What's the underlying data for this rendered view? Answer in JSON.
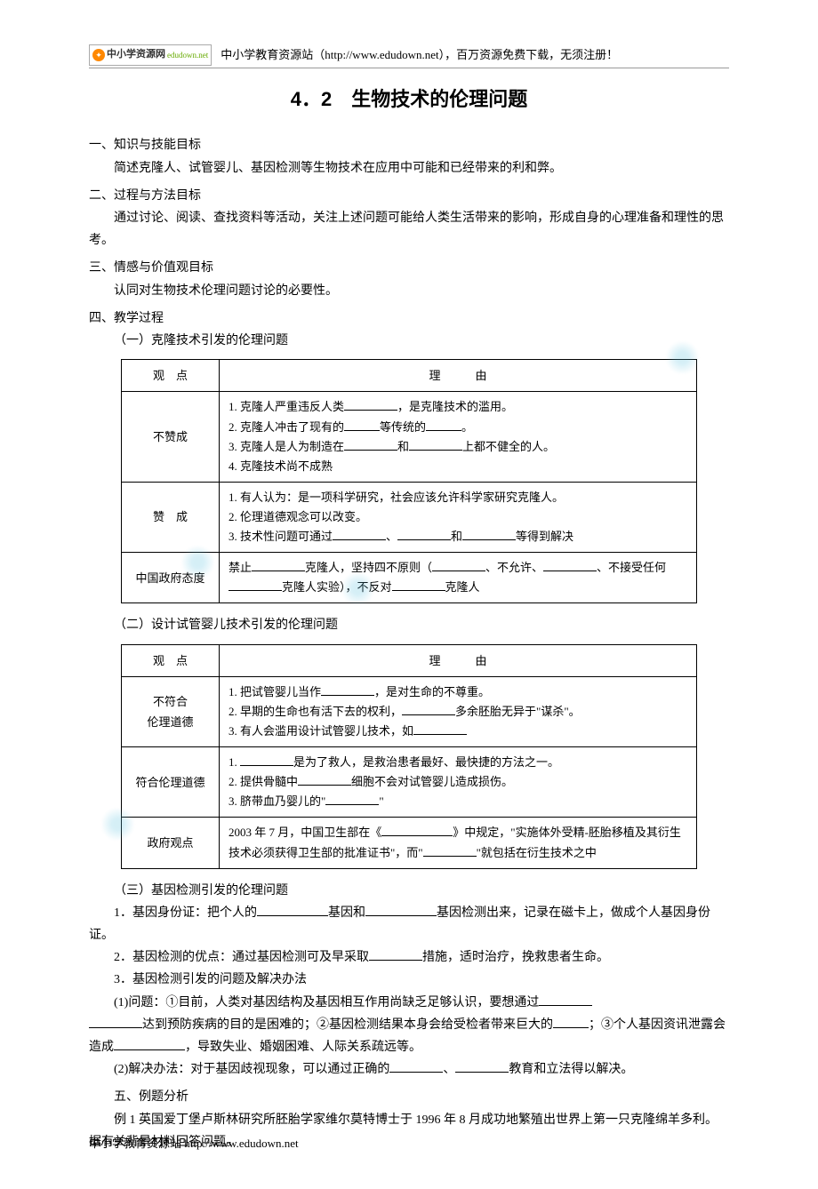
{
  "header": {
    "logo_main": "中小学资源网",
    "logo_sub": "edudown.net",
    "site_text": "中小学教育资源站（http://www.edudown.net），百万资源免费下载，无须注册！"
  },
  "title": "4．2　生物技术的伦理问题",
  "sec1": {
    "label": "一、知识与技能目标",
    "body": "简述克隆人、试管婴儿、基因检测等生物技术在应用中可能和已经带来的利和弊。"
  },
  "sec2": {
    "label": "二、过程与方法目标",
    "body": "通过讨论、阅读、查找资料等活动，关注上述问题可能给人类生活带来的影响，形成自身的心理准备和理性的思考。"
  },
  "sec3": {
    "label": "三、情感与价值观目标",
    "body": "认同对生物技术伦理问题讨论的必要性。"
  },
  "sec4_label": "四、教学过程",
  "sub1": {
    "label": "（一）克隆技术引发的伦理问题",
    "h1": "观　点",
    "h2": "理　　　由",
    "r1_label": "不赞成",
    "r1_l1a": "1. 克隆人严重违反人类",
    "r1_l1b": "，是克隆技术的滥用。",
    "r1_l2a": "2. 克隆人冲击了现有的",
    "r1_l2b": "等传统的",
    "r1_l2c": "。",
    "r1_l3a": "3. 克隆人是人为制造在",
    "r1_l3b": "和",
    "r1_l3c": "上都不健全的人。",
    "r1_l4": "4. 克隆技术尚不成熟",
    "r2_label": "赞　成",
    "r2_l1": "1. 有人认为：是一项科学研究，社会应该允许科学家研究克隆人。",
    "r2_l2": "2. 伦理道德观念可以改变。",
    "r2_l3a": "3. 技术性问题可通过",
    "r2_l3b": "、",
    "r2_l3c": "和",
    "r2_l3d": "等得到解决",
    "r3_label": "中国政府态度",
    "r3_l1a": "禁止",
    "r3_l1b": "克隆人，坚持四不原则（",
    "r3_l1c": "、不允许、",
    "r3_l1d": "、不接受任何",
    "r3_l1e": "克隆人实验），不反对",
    "r3_l1f": "克隆人"
  },
  "sub2": {
    "label": "（二）设计试管婴儿技术引发的伦理问题",
    "h1": "观　点",
    "h2": "理　　　由",
    "r1_label_a": "不符合",
    "r1_label_b": "伦理道德",
    "r1_l1a": "1. 把试管婴儿当作",
    "r1_l1b": "，是对生命的不尊重。",
    "r1_l2a": "2. 早期的生命也有活下去的权利，",
    "r1_l2b": "多余胚胎无异于\"谋杀\"。",
    "r1_l3a": "3. 有人会滥用设计试管婴儿技术，如",
    "r2_label": "符合伦理道德",
    "r2_l1a": "1. ",
    "r2_l1b": "是为了救人，是救治患者最好、最快捷的方法之一。",
    "r2_l2a": "2. 提供骨髓中",
    "r2_l2b": "细胞不会对试管婴儿造成损伤。",
    "r2_l3a": "3. 脐带血乃婴儿的\"",
    "r2_l3b": "\"",
    "r3_label": "政府观点",
    "r3_l1a": "2003 年 7 月，中国卫生部在《",
    "r3_l1b": "》中规定，\"实施体外受精-胚胎移植及其衍生技术必须获得卫生部的批准证书\"，而\"",
    "r3_l1c": "\"就包括在衍生技术之中"
  },
  "sub3": {
    "label": "（三）基因检测引发的伦理问题",
    "p1a": "1．基因身份证：把个人的",
    "p1b": "基因和",
    "p1c": "基因检测出来，记录在磁卡上，做成个人基因身份证。",
    "p2a": "2．基因检测的优点：通过基因检测可及早采取",
    "p2b": "措施，适时治疗，挽救患者生命。",
    "p3": "3．基因检测引发的问题及解决办法",
    "p4a": "(1)问题：①目前，人类对基因结构及基因相互作用尚缺乏足够认识，要想通过",
    "p4b": "达到预防疾病的目的是困难的；②基因检测结果本身会给受检者带来巨大的",
    "p4c": "；③个人基因资讯泄露会造成",
    "p4d": "，导致失业、婚姻困难、人际关系疏远等。",
    "p5a": "(2)解决办法：对于基因歧视现象，可以通过正确的",
    "p5b": "、",
    "p5c": "教育和立法得以解决。"
  },
  "sec5": {
    "label": "五、例题分析",
    "body": "例 1 英国爱丁堡卢斯林研究所胚胎学家维尔莫特博士于 1996 年 8 月成功地繁殖出世界上第一只克隆绵羊多利。据有关背景材料回答问题。"
  },
  "footer": "中小学教育资源站  http://www.edudown.net"
}
